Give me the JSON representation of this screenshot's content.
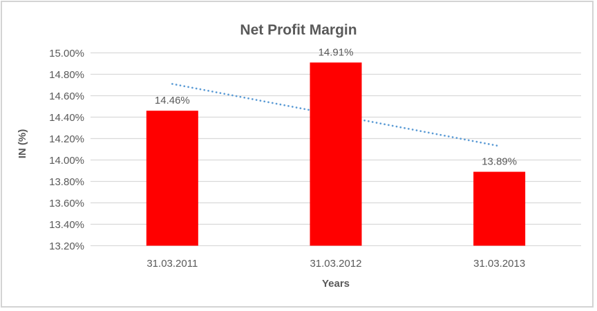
{
  "chart_data": {
    "type": "bar",
    "title": "Net Profit Margin",
    "xlabel": "Years",
    "ylabel": "IN (%)",
    "categories": [
      "31.03.2011",
      "31.03.2012",
      "31.03.2013"
    ],
    "values": [
      14.46,
      14.91,
      13.89
    ],
    "data_labels": [
      "14.46%",
      "14.91%",
      "13.89%"
    ],
    "ylim": [
      13.2,
      15.0
    ],
    "y_ticks": [
      {
        "value": 15.0,
        "label": "15.00%"
      },
      {
        "value": 14.8,
        "label": "14.80%"
      },
      {
        "value": 14.6,
        "label": "14.60%"
      },
      {
        "value": 14.4,
        "label": "14.40%"
      },
      {
        "value": 14.2,
        "label": "14.20%"
      },
      {
        "value": 14.0,
        "label": "14.00%"
      },
      {
        "value": 13.8,
        "label": "13.80%"
      },
      {
        "value": 13.6,
        "label": "13.60%"
      },
      {
        "value": 13.4,
        "label": "13.40%"
      },
      {
        "value": 13.2,
        "label": "13.20%"
      }
    ],
    "grid": true,
    "legend": "none",
    "bar_color": "#ff0000",
    "text_color": "#595959",
    "gridline_color": "#d9d9d9",
    "trendline": {
      "style": "dotted",
      "color": "#5b9bd5",
      "start_value": 14.71,
      "end_value": 14.13
    }
  }
}
